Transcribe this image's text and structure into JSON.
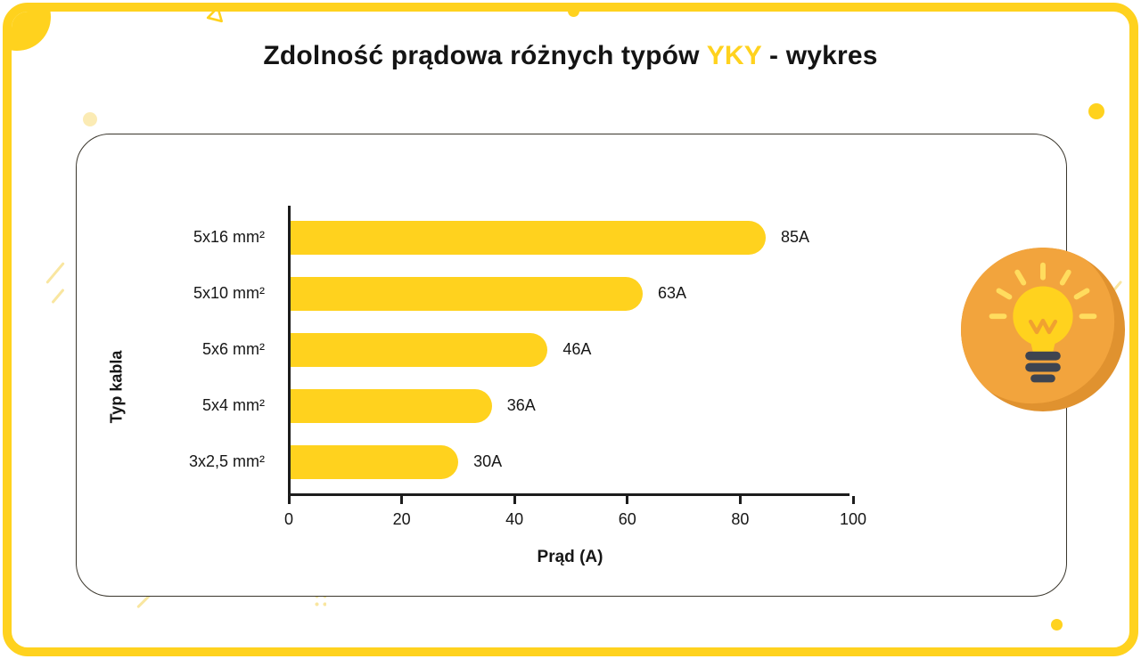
{
  "title": {
    "prefix": "Zdolność prądowa różnych typów ",
    "highlight": "YKY",
    "suffix": " - wykres"
  },
  "chart_data": {
    "type": "bar",
    "orientation": "horizontal",
    "title": "Zdolność prądowa różnych typów YKY - wykres",
    "categories": [
      "5x16 mm²",
      "5x10 mm²",
      "5x6 mm²",
      "5x4 mm²",
      "3x2,5 mm²"
    ],
    "values": [
      85,
      63,
      46,
      36,
      30
    ],
    "data_labels": [
      "85A",
      "63A",
      "46A",
      "36A",
      "30A"
    ],
    "xlabel": "Prąd (A)",
    "ylabel": "Typ kabla",
    "xlim": [
      0,
      100
    ],
    "x_ticks": [
      "0",
      "20",
      "40",
      "60",
      "80",
      "100"
    ],
    "grid": false,
    "legend": false,
    "bar_color": "#FFD21E"
  },
  "colors": {
    "accent_yellow": "#FFD21E",
    "title_text": "#141414",
    "axis": "#1C1C1C",
    "badge_orange": "#F2A43D",
    "badge_shadow": "#E0922F",
    "bulb_yellow": "#FFD21E",
    "bulb_base": "#3E4450"
  },
  "badge": {
    "icon": "lightbulb-icon"
  }
}
